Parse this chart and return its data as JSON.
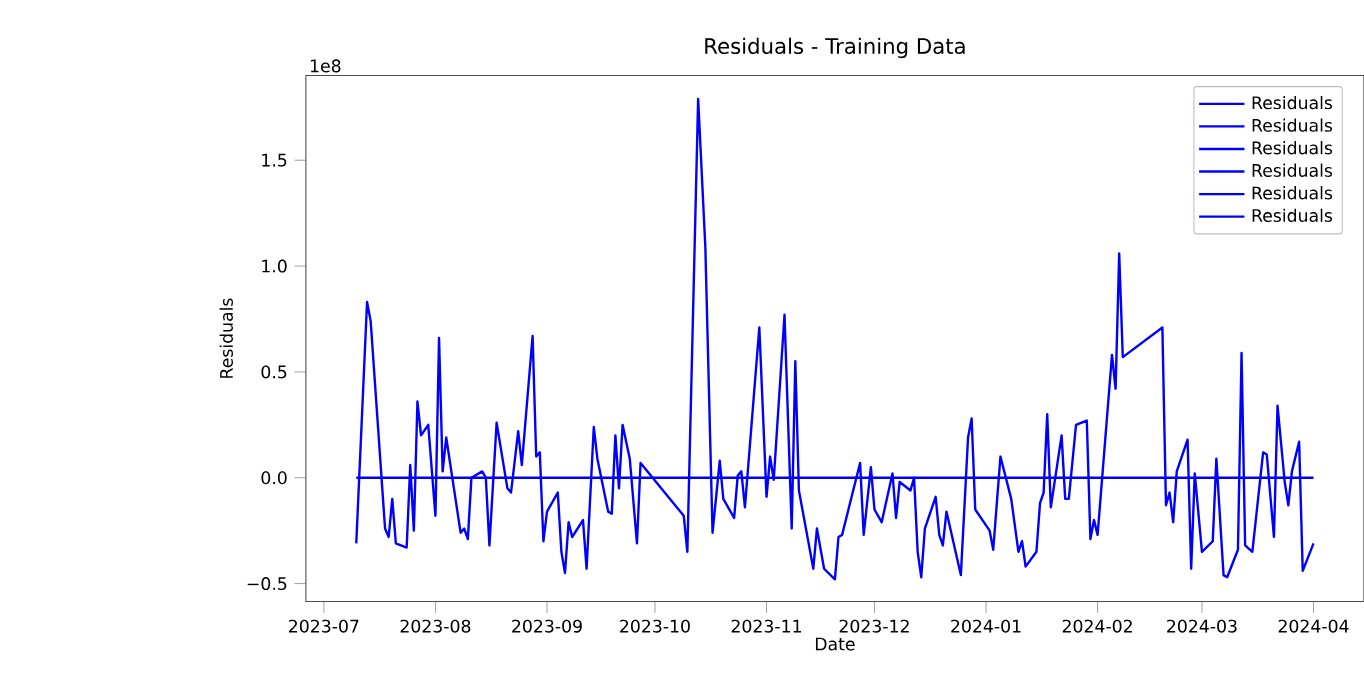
{
  "chart_data": {
    "type": "line",
    "title": "Residuals - Training Data",
    "xlabel": "Date",
    "ylabel": "Residuals",
    "annotations": [
      "1e8"
    ],
    "legend": "top right",
    "grid": false,
    "line_style": "solid",
    "xlim": [
      "2023-06-26",
      "2024-04-15"
    ],
    "xticks": [
      "2023-07",
      "2023-08",
      "2023-09",
      "2023-10",
      "2023-11",
      "2023-12",
      "2024-01",
      "2024-02",
      "2024-03",
      "2024-04"
    ],
    "ylim": [
      -0.585,
      1.9
    ],
    "yticks": [
      {
        "value": -0.5,
        "label": "−0.5"
      },
      {
        "value": 0,
        "label": "0.0"
      },
      {
        "value": 0.5,
        "label": "0.5"
      },
      {
        "value": 1.0,
        "label": "1.0"
      },
      {
        "value": 1.5,
        "label": "1.5"
      }
    ],
    "series": [
      {
        "name": "Residuals",
        "color": "#0000ff",
        "x": [
          "2023-07-10",
          "2023-07-13",
          "2023-07-14",
          "2023-07-18",
          "2023-07-19",
          "2023-07-20",
          "2023-07-21",
          "2023-07-24",
          "2023-07-25",
          "2023-07-26",
          "2023-07-27",
          "2023-07-28",
          "2023-07-30",
          "2023-08-01",
          "2023-08-02",
          "2023-08-03",
          "2023-08-04",
          "2023-08-08",
          "2023-08-09",
          "2023-08-10",
          "2023-08-11",
          "2023-08-14",
          "2023-08-15",
          "2023-08-16",
          "2023-08-18",
          "2023-08-21",
          "2023-08-22",
          "2023-08-24",
          "2023-08-25",
          "2023-08-28",
          "2023-08-29",
          "2023-08-30",
          "2023-08-31",
          "2023-09-01",
          "2023-09-04",
          "2023-09-05",
          "2023-09-06",
          "2023-09-07",
          "2023-09-08",
          "2023-09-11",
          "2023-09-12",
          "2023-09-14",
          "2023-09-15",
          "2023-09-18",
          "2023-09-19",
          "2023-09-20",
          "2023-09-21",
          "2023-09-22",
          "2023-09-24",
          "2023-09-26",
          "2023-09-27",
          "2023-10-09",
          "2023-10-10",
          "2023-10-13",
          "2023-10-15",
          "2023-10-17",
          "2023-10-19",
          "2023-10-20",
          "2023-10-23",
          "2023-10-24",
          "2023-10-25",
          "2023-10-26",
          "2023-10-30",
          "2023-11-01",
          "2023-11-02",
          "2023-11-03",
          "2023-11-06",
          "2023-11-08",
          "2023-11-09",
          "2023-11-10",
          "2023-11-14",
          "2023-11-15",
          "2023-11-17",
          "2023-11-20",
          "2023-11-21",
          "2023-11-22",
          "2023-11-27",
          "2023-11-28",
          "2023-11-30",
          "2023-12-01",
          "2023-12-03",
          "2023-12-06",
          "2023-12-07",
          "2023-12-08",
          "2023-12-11",
          "2023-12-12",
          "2023-12-13",
          "2023-12-14",
          "2023-12-15",
          "2023-12-18",
          "2023-12-19",
          "2023-12-20",
          "2023-12-21",
          "2023-12-25",
          "2023-12-27",
          "2023-12-28",
          "2023-12-29",
          "2024-01-02",
          "2024-01-03",
          "2024-01-05",
          "2024-01-08",
          "2024-01-10",
          "2024-01-11",
          "2024-01-12",
          "2024-01-15",
          "2024-01-16",
          "2024-01-17",
          "2024-01-18",
          "2024-01-19",
          "2024-01-22",
          "2024-01-23",
          "2024-01-24",
          "2024-01-26",
          "2024-01-29",
          "2024-01-30",
          "2024-01-31",
          "2024-02-01",
          "2024-02-05",
          "2024-02-06",
          "2024-02-07",
          "2024-02-08",
          "2024-02-19",
          "2024-02-20",
          "2024-02-21",
          "2024-02-22",
          "2024-02-23",
          "2024-02-26",
          "2024-02-27",
          "2024-02-28",
          "2024-03-01",
          "2024-03-04",
          "2024-03-05",
          "2024-03-07",
          "2024-03-08",
          "2024-03-11",
          "2024-03-12",
          "2024-03-13",
          "2024-03-15",
          "2024-03-18",
          "2024-03-19",
          "2024-03-21",
          "2024-03-22",
          "2024-03-24",
          "2024-03-25",
          "2024-03-26",
          "2024-03-28",
          "2024-03-29",
          "2024-04-01"
        ],
        "values": [
          -0.31,
          0.83,
          0.74,
          -0.24,
          -0.28,
          -0.1,
          -0.31,
          -0.33,
          0.06,
          -0.25,
          0.36,
          0.2,
          0.25,
          -0.18,
          0.66,
          0.03,
          0.19,
          -0.26,
          -0.24,
          -0.29,
          0.0,
          0.03,
          0.0,
          -0.32,
          0.26,
          -0.05,
          -0.07,
          0.22,
          0.06,
          0.67,
          0.1,
          0.12,
          -0.3,
          -0.16,
          -0.07,
          -0.35,
          -0.45,
          -0.21,
          -0.28,
          -0.2,
          -0.43,
          0.24,
          0.09,
          -0.16,
          -0.17,
          0.2,
          -0.05,
          0.25,
          0.09,
          -0.31,
          0.07,
          -0.18,
          -0.35,
          1.79,
          1.09,
          -0.26,
          0.08,
          -0.1,
          -0.19,
          0.01,
          0.03,
          -0.14,
          0.71,
          -0.09,
          0.1,
          -0.01,
          0.77,
          -0.24,
          0.55,
          -0.06,
          -0.43,
          -0.24,
          -0.43,
          -0.48,
          -0.28,
          -0.27,
          0.07,
          -0.27,
          0.05,
          -0.15,
          -0.21,
          0.02,
          -0.19,
          -0.02,
          -0.06,
          0.0,
          -0.35,
          -0.47,
          -0.24,
          -0.09,
          -0.27,
          -0.32,
          -0.16,
          -0.46,
          0.19,
          0.28,
          -0.15,
          -0.25,
          -0.34,
          0.1,
          -0.1,
          -0.35,
          -0.3,
          -0.42,
          -0.35,
          -0.12,
          -0.07,
          0.3,
          -0.14,
          0.2,
          -0.1,
          -0.1,
          0.25,
          0.27,
          -0.29,
          -0.2,
          -0.27,
          0.58,
          0.42,
          1.06,
          0.57,
          0.71,
          -0.13,
          -0.07,
          -0.21,
          0.03,
          0.18,
          -0.43,
          0.02,
          -0.35,
          -0.3,
          0.09,
          -0.46,
          -0.47,
          -0.34,
          0.59,
          -0.32,
          -0.35,
          0.12,
          0.11,
          -0.28,
          0.34,
          -0.02,
          -0.13,
          0.03,
          0.17,
          -0.44,
          -0.31
        ]
      },
      {
        "name": "Residuals",
        "color": "#0000ff",
        "x": [
          "2023-07-10",
          "2024-04-01"
        ],
        "values": [
          0,
          0
        ]
      },
      {
        "name": "Residuals",
        "color": "#0000ff"
      },
      {
        "name": "Residuals",
        "color": "#0000ff"
      },
      {
        "name": "Residuals",
        "color": "#0000ff"
      },
      {
        "name": "Residuals",
        "color": "#0000ff"
      }
    ]
  }
}
